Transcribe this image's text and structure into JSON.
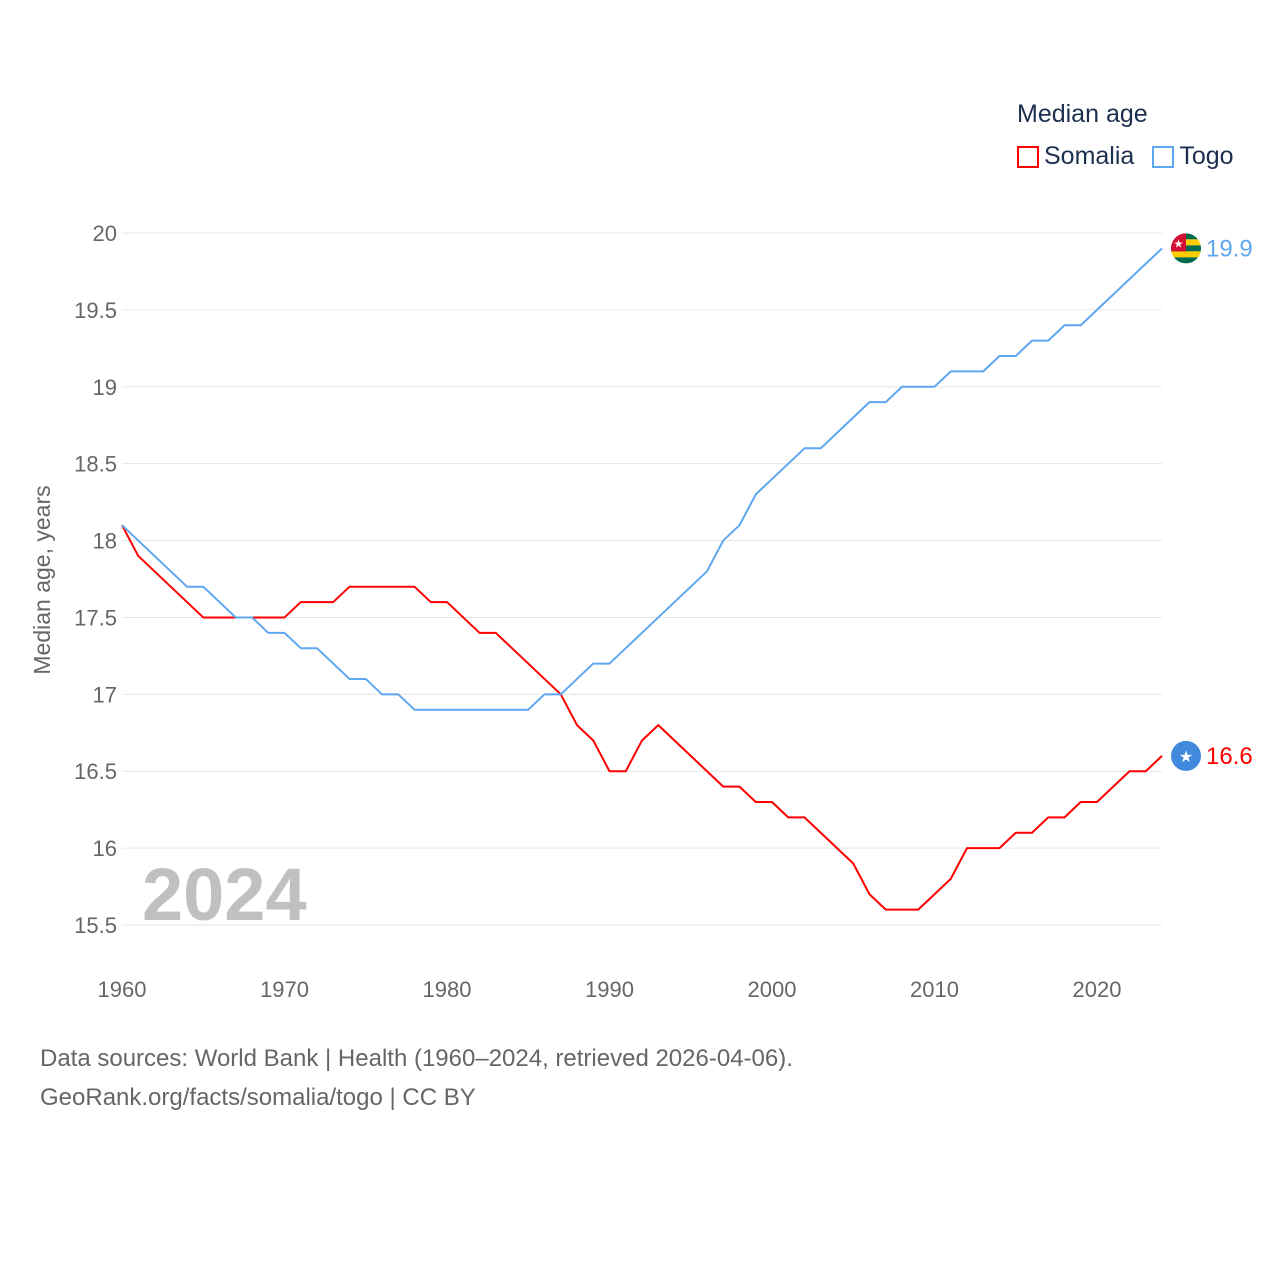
{
  "chart_data": {
    "type": "line",
    "title": "",
    "ylabel": "Median age, years",
    "xlabel": "",
    "ylim": [
      15.5,
      20
    ],
    "xlim": [
      1960,
      2024
    ],
    "yticks": [
      "15.5",
      "16",
      "16.5",
      "17",
      "17.5",
      "18",
      "18.5",
      "19",
      "19.5",
      "20"
    ],
    "xticks": [
      "1960",
      "1970",
      "1980",
      "1990",
      "2000",
      "2010",
      "2020"
    ],
    "grid": true,
    "legend_title": "Median age",
    "legend_position": "top-right",
    "year_label": "2024",
    "x": [
      1960,
      1961,
      1962,
      1963,
      1964,
      1965,
      1966,
      1967,
      1968,
      1969,
      1970,
      1971,
      1972,
      1973,
      1974,
      1975,
      1976,
      1977,
      1978,
      1979,
      1980,
      1981,
      1982,
      1983,
      1984,
      1985,
      1986,
      1987,
      1988,
      1989,
      1990,
      1991,
      1992,
      1993,
      1994,
      1995,
      1996,
      1997,
      1998,
      1999,
      2000,
      2001,
      2002,
      2003,
      2004,
      2005,
      2006,
      2007,
      2008,
      2009,
      2010,
      2011,
      2012,
      2013,
      2014,
      2015,
      2016,
      2017,
      2018,
      2019,
      2020,
      2021,
      2022,
      2023,
      2024
    ],
    "series": [
      {
        "name": "Somalia",
        "color": "#ff0000",
        "end_label": "16.6",
        "values": [
          18.1,
          17.9,
          17.8,
          17.7,
          17.6,
          17.5,
          17.5,
          17.5,
          17.5,
          17.5,
          17.5,
          17.6,
          17.6,
          17.6,
          17.7,
          17.7,
          17.7,
          17.7,
          17.7,
          17.6,
          17.6,
          17.5,
          17.4,
          17.4,
          17.3,
          17.2,
          17.1,
          17.0,
          16.8,
          16.7,
          16.5,
          16.5,
          16.7,
          16.8,
          16.7,
          16.6,
          16.5,
          16.4,
          16.4,
          16.3,
          16.3,
          16.2,
          16.2,
          16.1,
          16.0,
          15.9,
          15.7,
          15.6,
          15.6,
          15.6,
          15.7,
          15.8,
          16.0,
          16.0,
          16.0,
          16.1,
          16.1,
          16.2,
          16.2,
          16.3,
          16.3,
          16.4,
          16.5,
          16.5,
          16.6
        ]
      },
      {
        "name": "Togo",
        "color": "#5ea7f0",
        "end_label": "19.9",
        "values": [
          18.1,
          18.0,
          17.9,
          17.8,
          17.7,
          17.7,
          17.6,
          17.5,
          17.5,
          17.4,
          17.4,
          17.3,
          17.3,
          17.2,
          17.1,
          17.1,
          17.0,
          17.0,
          16.9,
          16.9,
          16.9,
          16.9,
          16.9,
          16.9,
          16.9,
          16.9,
          17.0,
          17.0,
          17.1,
          17.2,
          17.2,
          17.3,
          17.4,
          17.5,
          17.6,
          17.7,
          17.8,
          18.0,
          18.1,
          18.3,
          18.4,
          18.5,
          18.6,
          18.6,
          18.7,
          18.8,
          18.9,
          18.9,
          19.0,
          19.0,
          19.0,
          19.1,
          19.1,
          19.1,
          19.2,
          19.2,
          19.3,
          19.3,
          19.4,
          19.4,
          19.5,
          19.6,
          19.7,
          19.8,
          19.9
        ]
      }
    ]
  },
  "footer": {
    "source": "Data sources: World Bank | Health (1960–2024, retrieved 2026-04-06).",
    "credit": "GeoRank.org/facts/somalia/togo | CC BY"
  }
}
